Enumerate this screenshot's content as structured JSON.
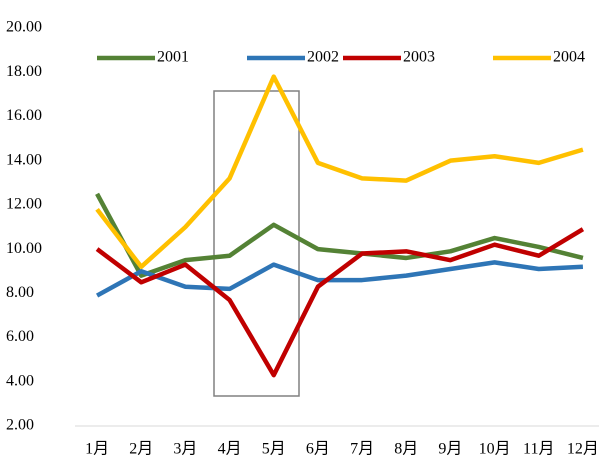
{
  "chart_data": {
    "type": "line",
    "categories": [
      "1月",
      "2月",
      "3月",
      "4月",
      "5月",
      "6月",
      "7月",
      "8月",
      "9月",
      "10月",
      "11月",
      "12月"
    ],
    "series": [
      {
        "name": "2001",
        "color": "#548235",
        "values": [
          12.5,
          8.8,
          9.5,
          9.7,
          11.1,
          10.0,
          9.8,
          9.6,
          9.9,
          10.5,
          10.1,
          9.6
        ]
      },
      {
        "name": "2002",
        "color": "#2e75b6",
        "values": [
          7.9,
          9.0,
          8.3,
          8.2,
          9.3,
          8.6,
          8.6,
          8.8,
          9.1,
          9.4,
          9.1,
          9.2
        ]
      },
      {
        "name": "2003",
        "color": "#c00000",
        "values": [
          10.0,
          8.5,
          9.3,
          7.7,
          4.3,
          8.3,
          9.8,
          9.9,
          9.5,
          10.2,
          9.7,
          10.9
        ]
      },
      {
        "name": "2004",
        "color": "#ffc000",
        "values": [
          11.8,
          9.2,
          11.0,
          13.2,
          17.8,
          13.9,
          13.2,
          13.1,
          14.0,
          14.2,
          13.9,
          14.5
        ]
      }
    ],
    "ylim": [
      2,
      20
    ],
    "yticks": [
      {
        "value": 2,
        "label": "2.00"
      },
      {
        "value": 4,
        "label": "4.00"
      },
      {
        "value": 6,
        "label": "6.00"
      },
      {
        "value": 8,
        "label": "8.00"
      },
      {
        "value": 10,
        "label": "10.00"
      },
      {
        "value": 12,
        "label": "12.00"
      },
      {
        "value": 14,
        "label": "14.00"
      },
      {
        "value": 16,
        "label": "16.00"
      },
      {
        "value": 18,
        "label": "18.00"
      },
      {
        "value": 20,
        "label": "20.00"
      }
    ],
    "legend": "top",
    "grid": false
  }
}
